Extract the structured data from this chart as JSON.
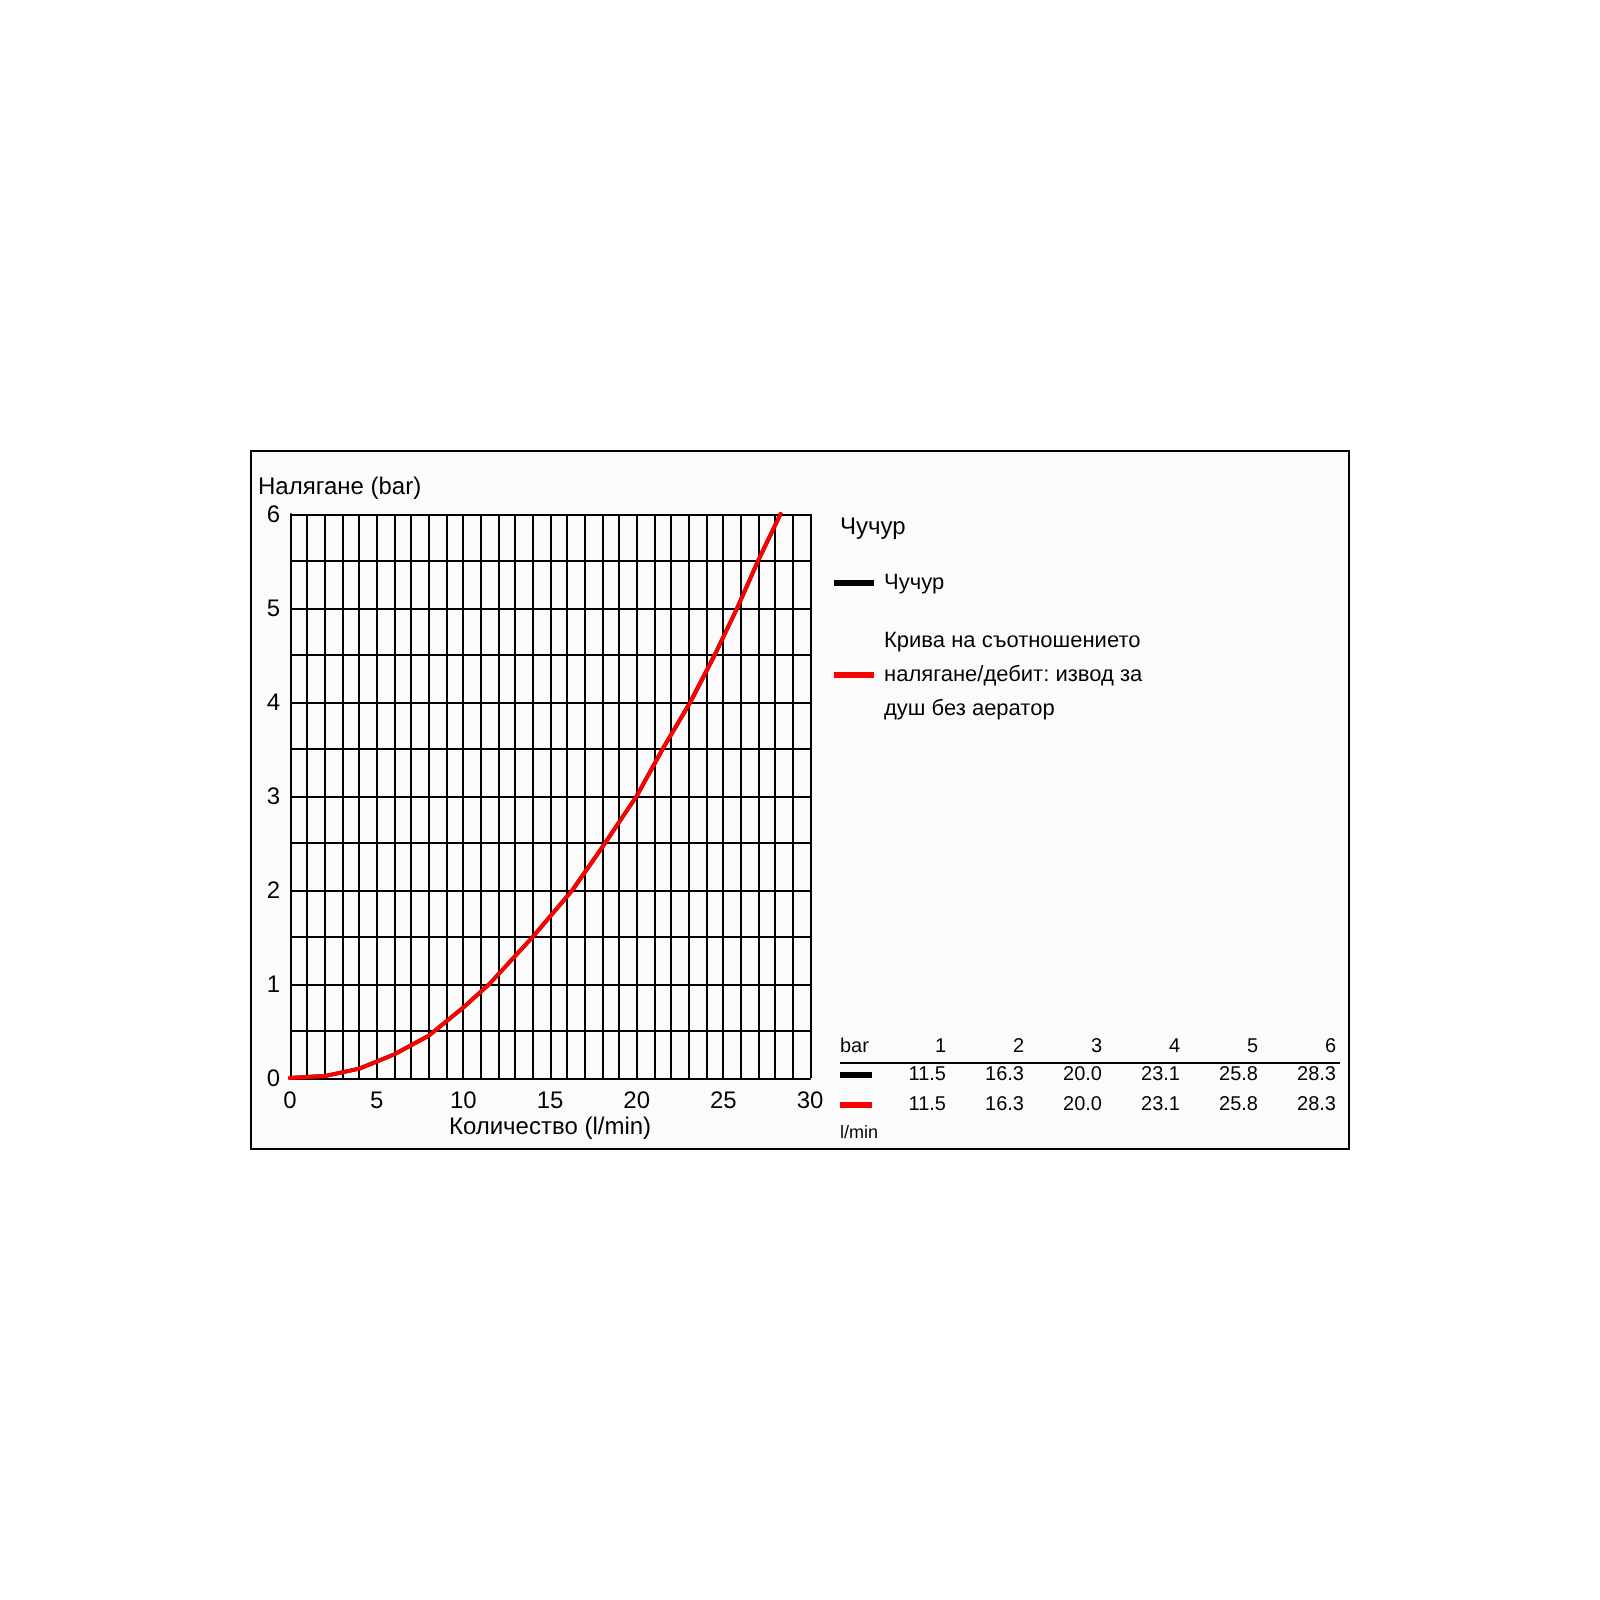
{
  "chart_data": {
    "type": "line",
    "xlabel": "Количество (l/min)",
    "ylabel": "Налягане (bar)",
    "legend_title": "Чучур",
    "legend": "right",
    "grid": true,
    "marker": "none",
    "line_style": "solid",
    "xlim": [
      0,
      30
    ],
    "ylim": [
      0,
      6
    ],
    "xticks": [
      0,
      {
        "value": 1,
        "label": null
      },
      {
        "value": 2,
        "label": null
      },
      {
        "value": 3,
        "label": null
      },
      {
        "value": 4,
        "label": null
      },
      5,
      {
        "value": 6,
        "label": null
      },
      {
        "value": 7,
        "label": null
      },
      {
        "value": 8,
        "label": null
      },
      {
        "value": 9,
        "label": null
      },
      10,
      {
        "value": 11,
        "label": null
      },
      {
        "value": 12,
        "label": null
      },
      {
        "value": 13,
        "label": null
      },
      {
        "value": 14,
        "label": null
      },
      15,
      {
        "value": 16,
        "label": null
      },
      {
        "value": 17,
        "label": null
      },
      {
        "value": 18,
        "label": null
      },
      {
        "value": 19,
        "label": null
      },
      20,
      {
        "value": 21,
        "label": null
      },
      {
        "value": 22,
        "label": null
      },
      {
        "value": 23,
        "label": null
      },
      {
        "value": 24,
        "label": null
      },
      25,
      {
        "value": 26,
        "label": null
      },
      {
        "value": 27,
        "label": null
      },
      {
        "value": 28,
        "label": null
      },
      {
        "value": 29,
        "label": null
      },
      30
    ],
    "yticks": [
      0,
      {
        "value": 0.5,
        "label": null
      },
      1,
      {
        "value": 1.5,
        "label": null
      },
      2,
      {
        "value": 2.5,
        "label": null
      },
      3,
      {
        "value": 3.5,
        "label": null
      },
      4,
      {
        "value": 4.5,
        "label": null
      },
      5,
      {
        "value": 5.5,
        "label": null
      },
      6
    ],
    "annotations": [
      "bar",
      "1",
      "2",
      "3",
      "4",
      "5",
      "6",
      "11.5",
      "16.3",
      "20.0",
      "23.1",
      "25.8",
      "28.3",
      "11.5",
      "16.3",
      "20.0",
      "23.1",
      "25.8",
      "28.3",
      "l/min"
    ],
    "series": [
      {
        "name": "Чучур",
        "color": "#000000",
        "x": [
          0,
          2,
          4,
          6,
          8,
          10,
          11.5,
          14,
          16.3,
          18,
          20,
          21.5,
          23.1,
          24.5,
          25.8,
          27,
          28.3
        ],
        "values": [
          0,
          0.02,
          0.1,
          0.25,
          0.45,
          0.75,
          1,
          1.5,
          2,
          2.45,
          3,
          3.5,
          4,
          4.5,
          5,
          5.5,
          6
        ]
      },
      {
        "name": "Крива на съотношението налягане/дебит: извод за душ без аератор",
        "color": "#ff0000",
        "x": [
          0,
          2,
          4,
          6,
          8,
          10,
          11.5,
          14,
          16.3,
          18,
          20,
          21.5,
          23.1,
          24.5,
          25.8,
          27,
          28.3
        ],
        "values": [
          0,
          0.02,
          0.1,
          0.25,
          0.45,
          0.75,
          1,
          1.5,
          2,
          2.45,
          3,
          3.5,
          4,
          4.5,
          5,
          5.5,
          6
        ]
      }
    ]
  }
}
